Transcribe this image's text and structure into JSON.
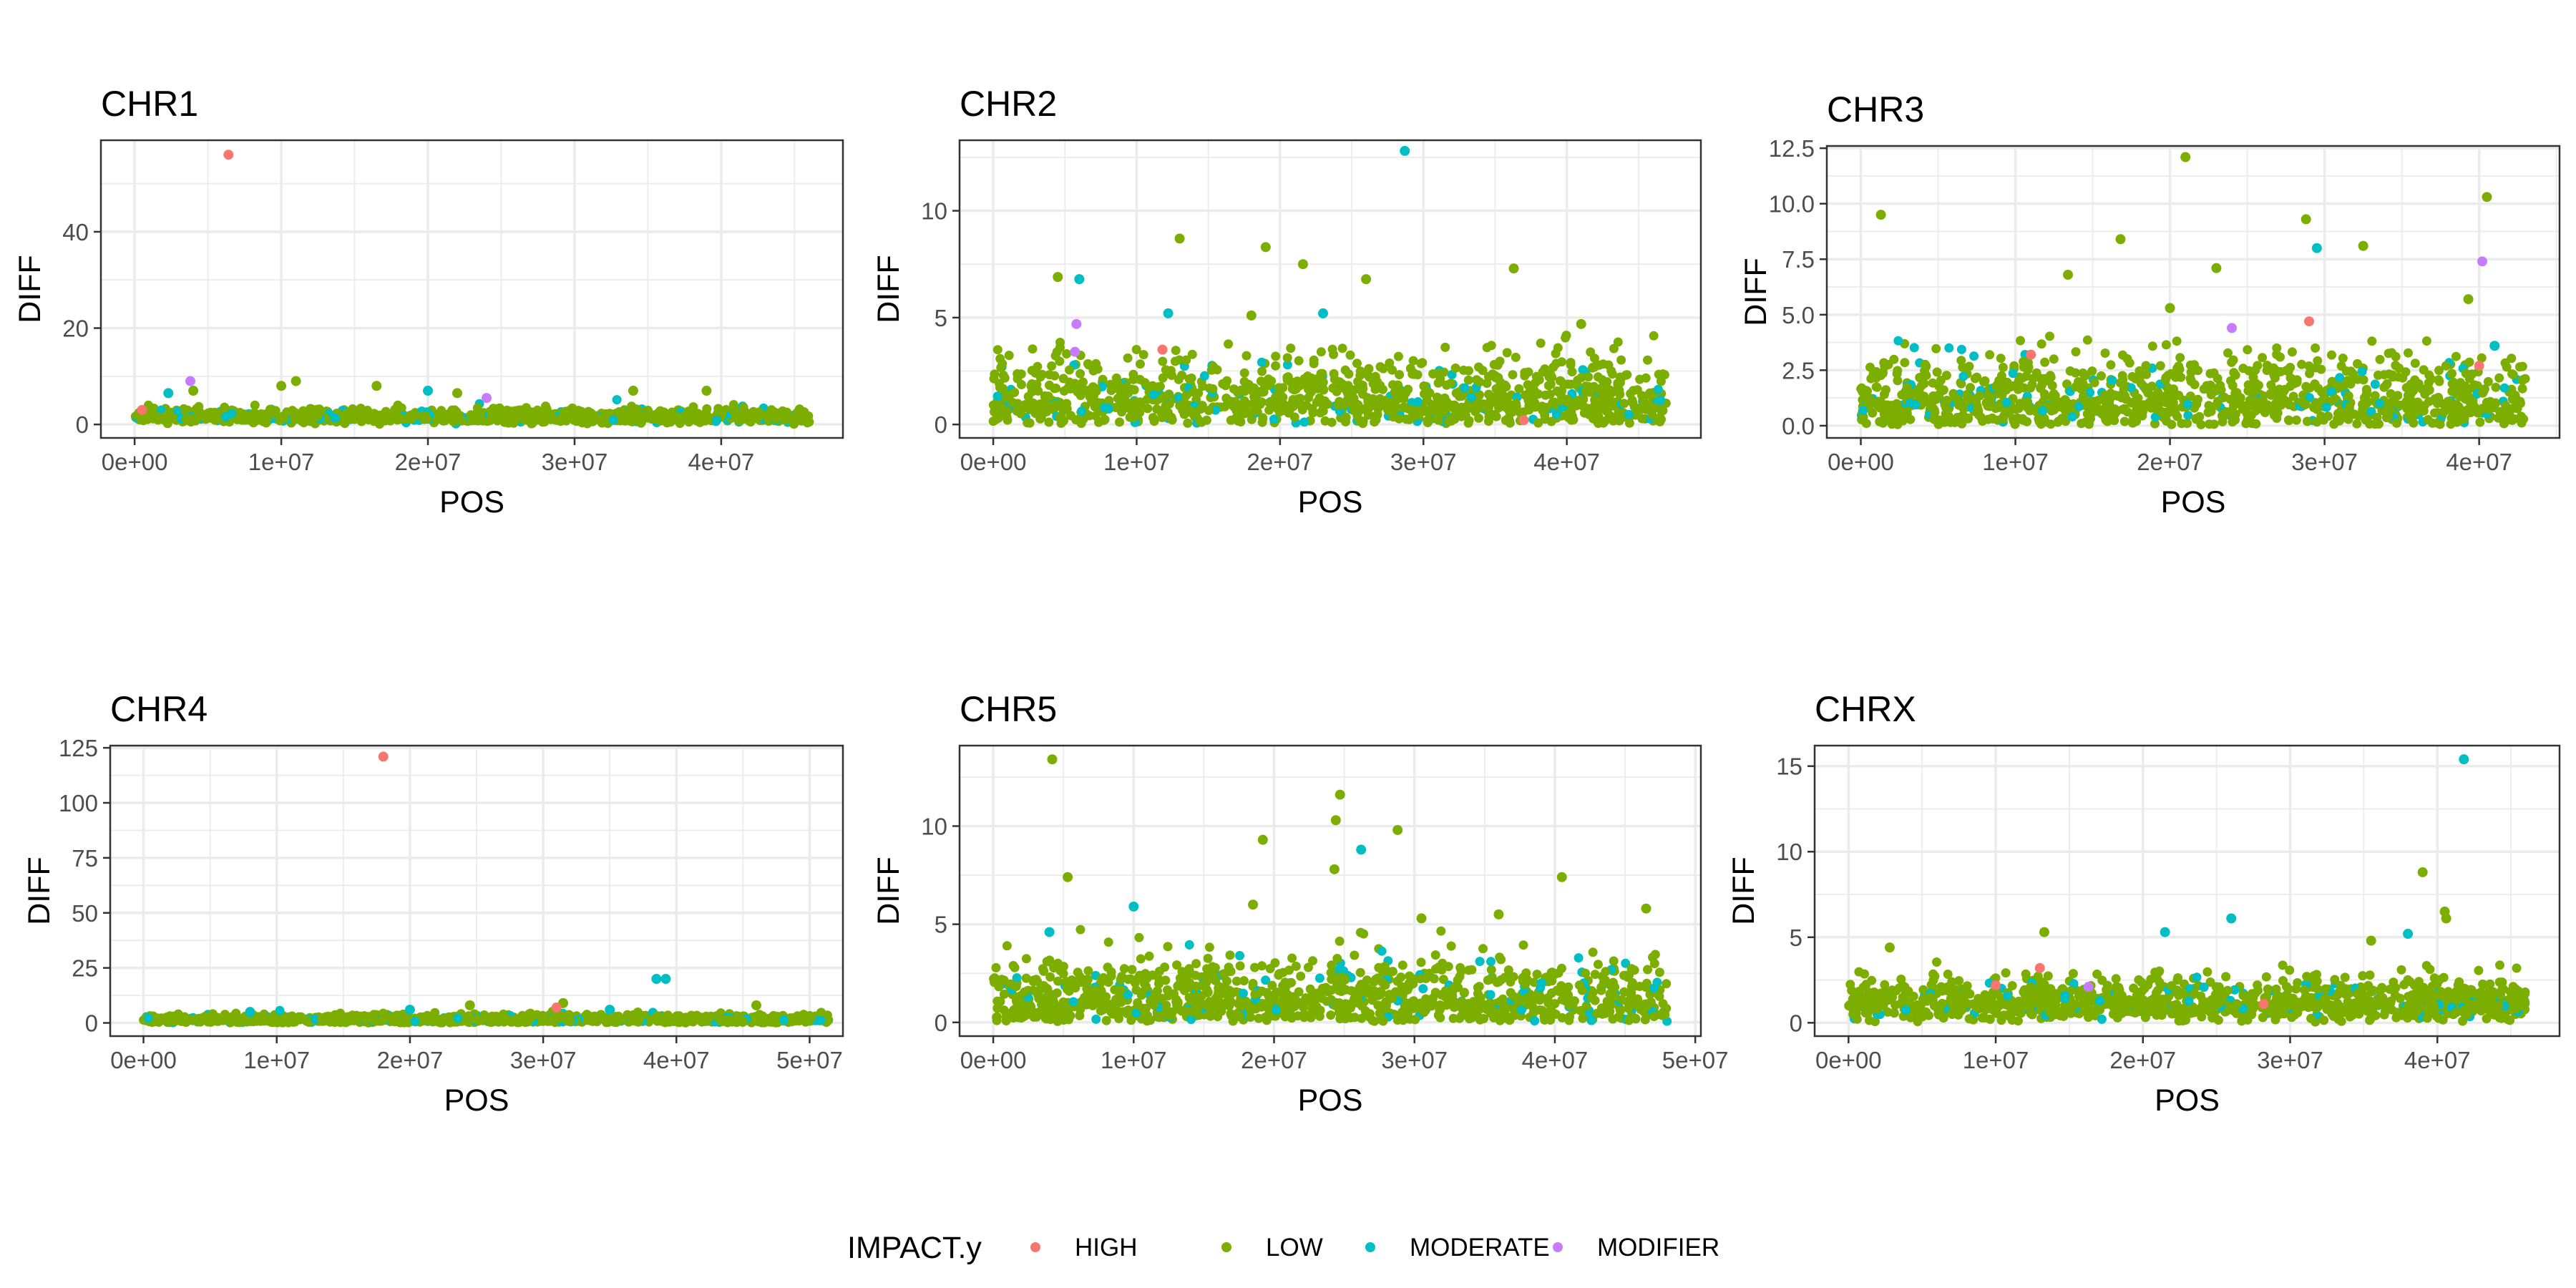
{
  "legend": {
    "title": "IMPACT.y",
    "items": [
      {
        "label": "HIGH",
        "color": "#F8766D"
      },
      {
        "label": "LOW",
        "color": "#7CAE00"
      },
      {
        "label": "MODERATE",
        "color": "#00BFC4"
      },
      {
        "label": "MODIFIER",
        "color": "#C77CFF"
      }
    ]
  },
  "chart_data": [
    {
      "type": "scatter",
      "title": "CHR1",
      "xlabel": "POS",
      "ylabel": "DIFF",
      "xlim": [
        -2300000,
        48300000
      ],
      "ylim": [
        -2.8,
        59
      ],
      "xticks": [
        0,
        10000000,
        20000000,
        30000000,
        40000000
      ],
      "xtick_labels": [
        "0e+00",
        "1e+07",
        "2e+07",
        "3e+07",
        "4e+07"
      ],
      "yticks": [
        0,
        20,
        40
      ],
      "ytick_labels": [
        "0",
        "20",
        "40"
      ],
      "grid": true,
      "x_extent": [
        0,
        46000000
      ],
      "baseline": {
        "mean": 1.5,
        "spread": 0.9
      },
      "points": [
        {
          "x": 6400000,
          "y": 56,
          "impact": "HIGH"
        },
        {
          "x": 3800000,
          "y": 9,
          "impact": "MODIFIER"
        },
        {
          "x": 24000000,
          "y": 5.5,
          "impact": "MODIFIER"
        },
        {
          "x": 2300000,
          "y": 6.5,
          "impact": "MODERATE"
        },
        {
          "x": 4000000,
          "y": 7,
          "impact": "LOW"
        },
        {
          "x": 10000000,
          "y": 8,
          "impact": "LOW"
        },
        {
          "x": 11000000,
          "y": 9,
          "impact": "LOW"
        },
        {
          "x": 16500000,
          "y": 8,
          "impact": "LOW"
        },
        {
          "x": 20000000,
          "y": 7,
          "impact": "MODERATE"
        },
        {
          "x": 34000000,
          "y": 7,
          "impact": "LOW"
        },
        {
          "x": 39000000,
          "y": 7,
          "impact": "LOW"
        },
        {
          "x": 22000000,
          "y": 6.5,
          "impact": "LOW"
        },
        {
          "x": 500000,
          "y": 3,
          "impact": "HIGH"
        }
      ]
    },
    {
      "type": "scatter",
      "title": "CHR2",
      "xlabel": "POS",
      "ylabel": "DIFF",
      "xlim": [
        -2350000,
        49350000
      ],
      "ylim": [
        -0.63,
        13.3
      ],
      "xticks": [
        0,
        10000000,
        20000000,
        30000000,
        40000000
      ],
      "xtick_labels": [
        "0e+00",
        "1e+07",
        "2e+07",
        "3e+07",
        "4e+07"
      ],
      "yticks": [
        0,
        5,
        10
      ],
      "ytick_labels": [
        "0",
        "5",
        "10"
      ],
      "grid": true,
      "x_extent": [
        0,
        47000000
      ],
      "baseline": {
        "mean": 1.1,
        "spread": 1.1
      },
      "points": [
        {
          "x": 28700000,
          "y": 12.8,
          "impact": "MODERATE"
        },
        {
          "x": 13000000,
          "y": 8.7,
          "impact": "LOW"
        },
        {
          "x": 19000000,
          "y": 8.3,
          "impact": "LOW"
        },
        {
          "x": 36300000,
          "y": 7.3,
          "impact": "LOW"
        },
        {
          "x": 4500000,
          "y": 6.9,
          "impact": "LOW"
        },
        {
          "x": 6000000,
          "y": 6.8,
          "impact": "MODERATE"
        },
        {
          "x": 5800000,
          "y": 4.7,
          "impact": "MODIFIER"
        },
        {
          "x": 5700000,
          "y": 3.4,
          "impact": "MODIFIER"
        },
        {
          "x": 11800000,
          "y": 3.5,
          "impact": "HIGH"
        },
        {
          "x": 26000000,
          "y": 6.8,
          "impact": "LOW"
        },
        {
          "x": 21600000,
          "y": 7.5,
          "impact": "LOW"
        },
        {
          "x": 41000000,
          "y": 4.7,
          "impact": "LOW"
        },
        {
          "x": 18000000,
          "y": 5.1,
          "impact": "LOW"
        },
        {
          "x": 23000000,
          "y": 5.2,
          "impact": "MODERATE"
        },
        {
          "x": 12200000,
          "y": 5.2,
          "impact": "MODERATE"
        },
        {
          "x": 37000000,
          "y": 0.2,
          "impact": "HIGH"
        }
      ]
    },
    {
      "type": "scatter",
      "title": "CHR3",
      "xlabel": "POS",
      "ylabel": "DIFF",
      "xlim": [
        -2200000,
        45200000
      ],
      "ylim": [
        -0.55,
        12.6
      ],
      "xticks": [
        0,
        10000000,
        20000000,
        30000000,
        40000000
      ],
      "xtick_labels": [
        "0e+00",
        "1e+07",
        "2e+07",
        "3e+07",
        "4e+07"
      ],
      "yticks": [
        0,
        2.5,
        5,
        7.5,
        10,
        12.5
      ],
      "ytick_labels": [
        "0.0",
        "2.5",
        "5.0",
        "7.5",
        "10.0",
        "12.5"
      ],
      "grid": true,
      "x_extent": [
        0,
        43000000
      ],
      "baseline": {
        "mean": 1.1,
        "spread": 1.1
      },
      "points": [
        {
          "x": 21000000,
          "y": 12.1,
          "impact": "LOW"
        },
        {
          "x": 40500000,
          "y": 10.3,
          "impact": "LOW"
        },
        {
          "x": 1300000,
          "y": 9.5,
          "impact": "LOW"
        },
        {
          "x": 28800000,
          "y": 9.3,
          "impact": "LOW"
        },
        {
          "x": 16800000,
          "y": 8.4,
          "impact": "LOW"
        },
        {
          "x": 32500000,
          "y": 8.1,
          "impact": "LOW"
        },
        {
          "x": 29500000,
          "y": 8.0,
          "impact": "MODERATE"
        },
        {
          "x": 40200000,
          "y": 7.4,
          "impact": "MODIFIER"
        },
        {
          "x": 13400000,
          "y": 6.8,
          "impact": "LOW"
        },
        {
          "x": 23000000,
          "y": 7.1,
          "impact": "LOW"
        },
        {
          "x": 39300000,
          "y": 5.7,
          "impact": "LOW"
        },
        {
          "x": 29000000,
          "y": 4.7,
          "impact": "HIGH"
        },
        {
          "x": 24000000,
          "y": 4.4,
          "impact": "MODIFIER"
        },
        {
          "x": 11000000,
          "y": 3.2,
          "impact": "HIGH"
        },
        {
          "x": 20000000,
          "y": 5.3,
          "impact": "LOW"
        },
        {
          "x": 40000000,
          "y": 2.7,
          "impact": "HIGH"
        },
        {
          "x": 41000000,
          "y": 3.6,
          "impact": "MODERATE"
        }
      ]
    },
    {
      "type": "scatter",
      "title": "CHR4",
      "xlabel": "POS",
      "ylabel": "DIFF",
      "xlim": [
        -2500000,
        52500000
      ],
      "ylim": [
        -6,
        126
      ],
      "xticks": [
        0,
        10000000,
        20000000,
        30000000,
        40000000,
        50000000
      ],
      "xtick_labels": [
        "0e+00",
        "1e+07",
        "2e+07",
        "3e+07",
        "4e+07",
        "5e+07"
      ],
      "yticks": [
        0,
        25,
        50,
        75,
        100,
        125
      ],
      "ytick_labels": [
        "0",
        "25",
        "50",
        "75",
        "100",
        "125"
      ],
      "grid": true,
      "x_extent": [
        0,
        51500000
      ],
      "baseline": {
        "mean": 1.5,
        "spread": 1.2
      },
      "points": [
        {
          "x": 18000000,
          "y": 121,
          "impact": "HIGH"
        },
        {
          "x": 38500000,
          "y": 20,
          "impact": "MODERATE"
        },
        {
          "x": 39200000,
          "y": 20,
          "impact": "MODERATE"
        },
        {
          "x": 31500000,
          "y": 9,
          "impact": "LOW"
        },
        {
          "x": 31000000,
          "y": 7,
          "impact": "HIGH"
        },
        {
          "x": 46000000,
          "y": 8,
          "impact": "LOW"
        },
        {
          "x": 24500000,
          "y": 8,
          "impact": "LOW"
        },
        {
          "x": 20000000,
          "y": 6,
          "impact": "MODERATE"
        },
        {
          "x": 35000000,
          "y": 6,
          "impact": "MODERATE"
        },
        {
          "x": 8000000,
          "y": 5,
          "impact": "MODERATE"
        }
      ]
    },
    {
      "type": "scatter",
      "title": "CHR5",
      "xlabel": "POS",
      "ylabel": "DIFF",
      "xlim": [
        -2400000,
        50400000
      ],
      "ylim": [
        -0.7,
        14.1
      ],
      "xticks": [
        0,
        10000000,
        20000000,
        30000000,
        40000000,
        50000000
      ],
      "xtick_labels": [
        "0e+00",
        "1e+07",
        "2e+07",
        "3e+07",
        "4e+07",
        "5e+07"
      ],
      "yticks": [
        0,
        5,
        10
      ],
      "ytick_labels": [
        "0",
        "5",
        "10"
      ],
      "grid": true,
      "x_extent": [
        0,
        48000000
      ],
      "baseline": {
        "mean": 1.1,
        "spread": 1.1
      },
      "points": [
        {
          "x": 4200000,
          "y": 13.4,
          "impact": "LOW"
        },
        {
          "x": 24700000,
          "y": 11.6,
          "impact": "LOW"
        },
        {
          "x": 24400000,
          "y": 10.3,
          "impact": "LOW"
        },
        {
          "x": 28800000,
          "y": 9.8,
          "impact": "LOW"
        },
        {
          "x": 19200000,
          "y": 9.3,
          "impact": "LOW"
        },
        {
          "x": 26200000,
          "y": 8.8,
          "impact": "MODERATE"
        },
        {
          "x": 24300000,
          "y": 7.8,
          "impact": "LOW"
        },
        {
          "x": 5300000,
          "y": 7.4,
          "impact": "LOW"
        },
        {
          "x": 40500000,
          "y": 7.4,
          "impact": "LOW"
        },
        {
          "x": 10000000,
          "y": 5.9,
          "impact": "MODERATE"
        },
        {
          "x": 18500000,
          "y": 6.0,
          "impact": "LOW"
        },
        {
          "x": 46500000,
          "y": 5.8,
          "impact": "LOW"
        },
        {
          "x": 4000000,
          "y": 4.6,
          "impact": "MODERATE"
        },
        {
          "x": 36000000,
          "y": 5.5,
          "impact": "LOW"
        },
        {
          "x": 30500000,
          "y": 5.3,
          "impact": "LOW"
        }
      ]
    },
    {
      "type": "scatter",
      "title": "CHRX",
      "xlabel": "POS",
      "ylabel": "DIFF",
      "xlim": [
        -2300000,
        48300000
      ],
      "ylim": [
        -0.78,
        16.2
      ],
      "xticks": [
        0,
        10000000,
        20000000,
        30000000,
        40000000
      ],
      "xtick_labels": [
        "0e+00",
        "1e+07",
        "2e+07",
        "3e+07",
        "4e+07"
      ],
      "yticks": [
        0,
        5,
        10,
        15
      ],
      "ytick_labels": [
        "0",
        "5",
        "10",
        "15"
      ],
      "grid": true,
      "x_extent": [
        0,
        46000000
      ],
      "baseline": {
        "mean": 1.1,
        "spread": 0.8
      },
      "points": [
        {
          "x": 41800000,
          "y": 15.4,
          "impact": "MODERATE"
        },
        {
          "x": 39000000,
          "y": 8.8,
          "impact": "LOW"
        },
        {
          "x": 40500000,
          "y": 6.5,
          "impact": "LOW"
        },
        {
          "x": 40600000,
          "y": 6.1,
          "impact": "LOW"
        },
        {
          "x": 26000000,
          "y": 6.1,
          "impact": "MODERATE"
        },
        {
          "x": 21500000,
          "y": 5.3,
          "impact": "MODERATE"
        },
        {
          "x": 13300000,
          "y": 5.3,
          "impact": "LOW"
        },
        {
          "x": 38000000,
          "y": 5.2,
          "impact": "MODERATE"
        },
        {
          "x": 35500000,
          "y": 4.8,
          "impact": "LOW"
        },
        {
          "x": 2800000,
          "y": 4.4,
          "impact": "LOW"
        },
        {
          "x": 13000000,
          "y": 3.2,
          "impact": "HIGH"
        },
        {
          "x": 10000000,
          "y": 2.2,
          "impact": "HIGH"
        },
        {
          "x": 16300000,
          "y": 2.1,
          "impact": "MODIFIER"
        },
        {
          "x": 28200000,
          "y": 1.1,
          "impact": "HIGH"
        }
      ]
    }
  ]
}
